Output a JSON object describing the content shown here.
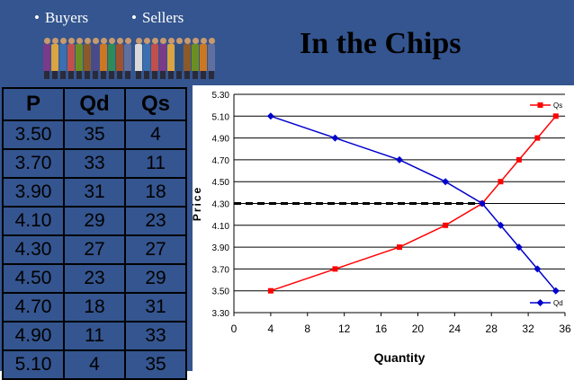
{
  "header": {
    "bullets": [
      "Buyers",
      "Sellers"
    ],
    "title": "In the Chips",
    "bg_color": "#34558f"
  },
  "table": {
    "headers": [
      "P",
      "Qd",
      "Qs"
    ],
    "rows": [
      [
        "3.50",
        "35",
        "4"
      ],
      [
        "3.70",
        "33",
        "11"
      ],
      [
        "3.90",
        "31",
        "18"
      ],
      [
        "4.10",
        "29",
        "23"
      ],
      [
        "4.30",
        "27",
        "27"
      ],
      [
        "4.50",
        "23",
        "29"
      ],
      [
        "4.70",
        "18",
        "31"
      ],
      [
        "4.90",
        "11",
        "33"
      ],
      [
        "5.10",
        "4",
        "35"
      ]
    ]
  },
  "chart_data": {
    "type": "line",
    "xlabel": "Quantity",
    "ylabel": "Price",
    "xlim": [
      0,
      36
    ],
    "ylim": [
      3.3,
      5.3
    ],
    "xticks": [
      "0",
      "4",
      "8",
      "12",
      "16",
      "20",
      "24",
      "28",
      "32",
      "36"
    ],
    "yticks": [
      "3.30",
      "3.50",
      "3.70",
      "3.90",
      "4.10",
      "4.30",
      "4.50",
      "4.70",
      "4.90",
      "5.10",
      "5.30"
    ],
    "grid": "horizontal",
    "series": [
      {
        "name": "Qs",
        "color": "#ff0000",
        "marker": "square",
        "legend_position": "top-right",
        "points": [
          [
            4,
            3.5
          ],
          [
            11,
            3.7
          ],
          [
            18,
            3.9
          ],
          [
            23,
            4.1
          ],
          [
            27,
            4.3
          ],
          [
            29,
            4.5
          ],
          [
            31,
            4.7
          ],
          [
            33,
            4.9
          ],
          [
            35,
            5.1
          ]
        ]
      },
      {
        "name": "Qd",
        "color": "#0000cc",
        "marker": "diamond",
        "legend_position": "bottom-right",
        "points": [
          [
            4,
            5.1
          ],
          [
            11,
            4.9
          ],
          [
            18,
            4.7
          ],
          [
            23,
            4.5
          ],
          [
            27,
            4.3
          ],
          [
            29,
            4.1
          ],
          [
            31,
            3.9
          ],
          [
            33,
            3.7
          ],
          [
            35,
            3.5
          ]
        ]
      }
    ],
    "equilibrium": {
      "price": 4.3,
      "quantity": 27,
      "style": "dashed"
    }
  }
}
